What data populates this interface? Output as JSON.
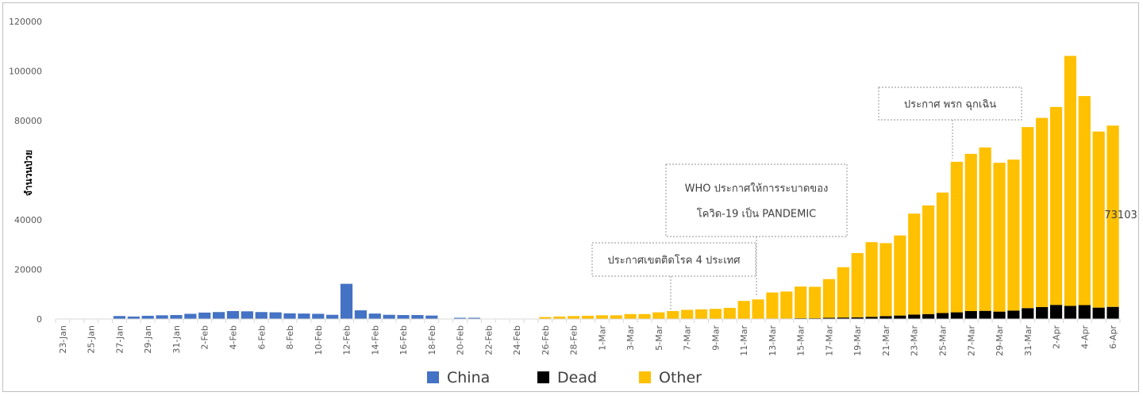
{
  "chart_data": {
    "type": "bar",
    "stacked": true,
    "title": "",
    "xlabel": "",
    "ylabel": "จำนวนป่วย",
    "ylim": [
      0,
      120000
    ],
    "y_ticks": [
      0,
      20000,
      40000,
      80000,
      100000,
      120000
    ],
    "grid": false,
    "legend_position": "bottom",
    "categories": [
      "23-Jan",
      "24-Jan",
      "25-Jan",
      "26-Jan",
      "27-Jan",
      "28-Jan",
      "29-Jan",
      "30-Jan",
      "31-Jan",
      "1-Feb",
      "2-Feb",
      "3-Feb",
      "4-Feb",
      "5-Feb",
      "6-Feb",
      "7-Feb",
      "8-Feb",
      "9-Feb",
      "10-Feb",
      "11-Feb",
      "12-Feb",
      "13-Feb",
      "14-Feb",
      "15-Feb",
      "16-Feb",
      "17-Feb",
      "18-Feb",
      "19-Feb",
      "20-Feb",
      "21-Feb",
      "22-Feb",
      "23-Feb",
      "24-Feb",
      "25-Feb",
      "26-Feb",
      "27-Feb",
      "28-Feb",
      "29-Feb",
      "1-Mar",
      "2-Mar",
      "3-Mar",
      "4-Mar",
      "5-Mar",
      "6-Mar",
      "7-Mar",
      "8-Mar",
      "9-Mar",
      "10-Mar",
      "11-Mar",
      "12-Mar",
      "13-Mar",
      "14-Mar",
      "15-Mar",
      "16-Mar",
      "17-Mar",
      "18-Mar",
      "19-Mar",
      "20-Mar",
      "21-Mar",
      "22-Mar",
      "23-Mar",
      "24-Mar",
      "25-Mar",
      "26-Mar",
      "27-Mar",
      "28-Mar",
      "29-Mar",
      "30-Mar",
      "31-Mar",
      "1-Apr",
      "2-Apr",
      "3-Apr",
      "4-Apr",
      "5-Apr",
      "6-Apr"
    ],
    "x_tick_labels": [
      "23-Jan",
      "25-Jan",
      "27-Jan",
      "29-Jan",
      "31-Jan",
      "2-Feb",
      "4-Feb",
      "6-Feb",
      "8-Feb",
      "10-Feb",
      "12-Feb",
      "14-Feb",
      "16-Feb",
      "18-Feb",
      "20-Feb",
      "22-Feb",
      "24-Feb",
      "26-Feb",
      "28-Feb",
      "1-Mar",
      "3-Mar",
      "5-Mar",
      "7-Mar",
      "9-Mar",
      "11-Mar",
      "13-Mar",
      "15-Mar",
      "17-Mar",
      "19-Mar",
      "21-Mar",
      "23-Mar",
      "25-Mar",
      "27-Mar",
      "29-Mar",
      "31-Mar",
      "2-Apr",
      "4-Apr",
      "6-Apr"
    ],
    "series": [
      {
        "name": "China",
        "color": "#4472c4",
        "values": [
          0,
          0,
          0,
          0,
          1200,
          1000,
          1300,
          1500,
          1600,
          2100,
          2600,
          2800,
          3200,
          3100,
          2800,
          2700,
          2300,
          2200,
          2100,
          1700,
          14200,
          3500,
          2200,
          1700,
          1600,
          1600,
          1400,
          0,
          500,
          500,
          0,
          0,
          0,
          0,
          0,
          0,
          0,
          0,
          0,
          0,
          0,
          0,
          0,
          0,
          0,
          0,
          0,
          0,
          0,
          0,
          0,
          0,
          0,
          0,
          0,
          0,
          0,
          0,
          0,
          0,
          0,
          0,
          0,
          0,
          0,
          0,
          0,
          0,
          0,
          0,
          0,
          0,
          0,
          0,
          0
        ]
      },
      {
        "name": "Dead",
        "color": "#000000",
        "values": [
          0,
          0,
          0,
          0,
          0,
          0,
          0,
          0,
          0,
          0,
          0,
          0,
          0,
          0,
          0,
          0,
          0,
          0,
          0,
          0,
          0,
          0,
          0,
          0,
          0,
          0,
          0,
          0,
          0,
          0,
          0,
          0,
          0,
          0,
          0,
          0,
          0,
          0,
          0,
          0,
          0,
          0,
          0,
          0,
          0,
          0,
          0,
          0,
          0,
          0,
          200,
          200,
          300,
          300,
          500,
          600,
          700,
          900,
          1200,
          1400,
          1800,
          2000,
          2400,
          2700,
          3200,
          3300,
          3000,
          3400,
          4400,
          4800,
          5700,
          5300,
          5600,
          4600,
          4900
        ]
      },
      {
        "name": "Other",
        "color": "#ffc000",
        "values": [
          0,
          0,
          0,
          0,
          0,
          0,
          0,
          0,
          0,
          0,
          0,
          0,
          0,
          0,
          0,
          0,
          0,
          0,
          0,
          0,
          0,
          0,
          0,
          0,
          0,
          0,
          0,
          0,
          0,
          0,
          0,
          0,
          0,
          0,
          800,
          1000,
          1200,
          1300,
          1500,
          1500,
          2000,
          2000,
          2700,
          3200,
          3700,
          3900,
          4100,
          4500,
          7300,
          7900,
          10500,
          10900,
          12800,
          12700,
          15600,
          20300,
          25900,
          30100,
          29400,
          32300,
          40700,
          43800,
          48600,
          60700,
          63400,
          65900,
          60000,
          60900,
          73000,
          76300,
          79800,
          100800,
          84300,
          71000,
          73103
        ]
      }
    ],
    "data_labels": [
      {
        "category": "6-Apr",
        "series": "Other",
        "text": "73103"
      }
    ],
    "annotations": [
      {
        "text": "ประกาศเขตติดโรค 4 ประเทศ",
        "category": "6-Mar"
      },
      {
        "text": "WHO ประกาศให้การระบาดของ\nโควิด-19 เป็น PANDEMIC",
        "category": "11-Mar"
      },
      {
        "text": "ประกาศ พรก ฉุกเฉิน",
        "category": "26-Mar"
      }
    ]
  }
}
